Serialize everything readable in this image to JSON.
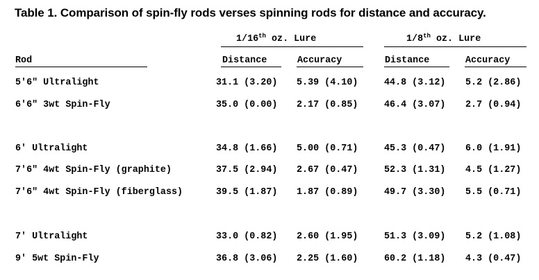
{
  "table": {
    "title": "Table 1.  Comparison of spin-fly rods verses spinning rods for distance and accuracy.",
    "groups": [
      {
        "pre": "1/16",
        "sup": "th",
        "post": " oz. Lure"
      },
      {
        "pre": "1/8",
        "sup": "th",
        "post": " oz. Lure"
      }
    ],
    "columns": {
      "rod": "Rod",
      "distance_1": "Distance",
      "accuracy_1": "Accuracy",
      "distance_2": "Distance",
      "accuracy_2": "Accuracy"
    },
    "rows": [
      {
        "rod": "5'6\" Ultralight",
        "d1": "31.1 (3.20)",
        "a1": "5.39 (4.10)",
        "d2": "44.8 (3.12)",
        "a2": "5.2 (2.86)"
      },
      {
        "rod": "6'6\" 3wt Spin-Fly",
        "d1": "35.0 (0.00)",
        "a1": "2.17 (0.85)",
        "d2": "46.4 (3.07)",
        "a2": "2.7 (0.94)"
      },
      {
        "rod": "6' Ultralight",
        "d1": "34.8 (1.66)",
        "a1": "5.00 (0.71)",
        "d2": "45.3 (0.47)",
        "a2": "6.0 (1.91)"
      },
      {
        "rod": "7'6\" 4wt Spin-Fly (graphite)",
        "d1": "37.5 (2.94)",
        "a1": "2.67 (0.47)",
        "d2": "52.3 (1.31)",
        "a2": "4.5 (1.27)"
      },
      {
        "rod": "7'6\" 4wt Spin-Fly (fiberglass)",
        "d1": "39.5 (1.87)",
        "a1": "1.87 (0.89)",
        "d2": "49.7 (3.30)",
        "a2": "5.5 (0.71)"
      },
      {
        "rod": "7' Ultralight",
        "d1": "33.0 (0.82)",
        "a1": "2.60 (1.95)",
        "d2": "51.3 (3.09)",
        "a2": "5.2 (1.08)"
      },
      {
        "rod": "9' 5wt Spin-Fly",
        "d1": "36.8 (3.06)",
        "a1": "2.25 (1.60)",
        "d2": "60.2 (1.18)",
        "a2": "4.3 (0.47)"
      }
    ]
  }
}
